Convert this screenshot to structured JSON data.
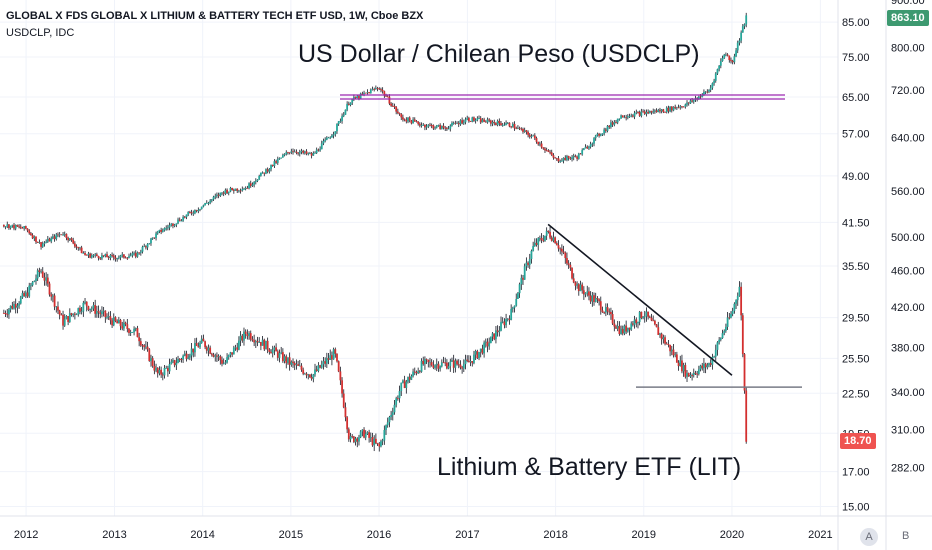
{
  "header": {
    "title": "GLOBAL X FDS GLOBAL X LITHIUM & BATTERY TECH ETF USD, 1W, Cboe BZX",
    "subtitle": "USDCLP, IDC"
  },
  "annotations": {
    "usdclp": "US Dollar / Chilean Peso (USDCLP)",
    "lit": "Lithium & Battery ETF (LIT)"
  },
  "price_tags": {
    "usdclp": "863.10",
    "lit": "18.70"
  },
  "buttons": {
    "auto": "A",
    "log": "B"
  },
  "colors": {
    "up": "#26a69a",
    "down": "#d32f2f",
    "usdclp_tag": "#3d9970",
    "lit_tag": "#ef5350",
    "resistance": "#9c27b0",
    "support": "#787b86",
    "trendline": "#131722"
  },
  "chart_data": [
    {
      "type": "line",
      "series": [
        {
          "name": "USDCLP",
          "x": [
            "2011-10",
            "2012-01",
            "2012-03",
            "2012-06",
            "2012-09",
            "2013-01",
            "2013-04",
            "2013-07",
            "2014-01",
            "2014-04",
            "2014-07",
            "2015-01",
            "2015-04",
            "2015-07",
            "2015-09",
            "2016-01",
            "2016-04",
            "2016-07",
            "2016-10",
            "2017-01",
            "2017-04",
            "2017-07",
            "2017-10",
            "2018-01",
            "2018-04",
            "2018-07",
            "2018-10",
            "2019-01",
            "2019-04",
            "2019-07",
            "2019-10",
            "2019-12",
            "2020-01",
            "2020-03"
          ],
          "values": [
            515,
            510,
            490,
            505,
            478,
            475,
            478,
            505,
            540,
            560,
            565,
            620,
            612,
            650,
            700,
            725,
            672,
            660,
            655,
            670,
            665,
            660,
            640,
            605,
            610,
            645,
            675,
            680,
            685,
            695,
            720,
            790,
            770,
            863
          ]
        }
      ],
      "ylim": [
        250,
        900
      ],
      "ticks": [
        282,
        310,
        340,
        380,
        420,
        460,
        500,
        560,
        640,
        720,
        800,
        900
      ]
    },
    {
      "type": "line",
      "series": [
        {
          "name": "LIT",
          "x": [
            "2011-10",
            "2012-01",
            "2012-03",
            "2012-06",
            "2012-09",
            "2013-01",
            "2013-04",
            "2013-07",
            "2014-01",
            "2014-04",
            "2014-07",
            "2015-01",
            "2015-04",
            "2015-07",
            "2015-09",
            "2015-11",
            "2016-01",
            "2016-04",
            "2016-07",
            "2016-10",
            "2017-01",
            "2017-04",
            "2017-07",
            "2017-10",
            "2017-12",
            "2018-01",
            "2018-04",
            "2018-07",
            "2018-10",
            "2019-01",
            "2019-04",
            "2019-07",
            "2019-10",
            "2020-01",
            "2020-02",
            "2020-03"
          ],
          "values": [
            30,
            32,
            35,
            29,
            31,
            29,
            28,
            24,
            27,
            25,
            28,
            25,
            24,
            26,
            19,
            19.5,
            18.5,
            23,
            25,
            25,
            25,
            27,
            30,
            38,
            40,
            39,
            33,
            31,
            28,
            30,
            27,
            24,
            25,
            30,
            33,
            18.7
          ]
        }
      ],
      "ylim": [
        14.5,
        92
      ],
      "ticks": [
        15,
        17,
        19.5,
        22.5,
        25.5,
        29.5,
        35.5,
        41.5,
        49,
        57,
        65,
        75,
        85
      ],
      "resistance": 65,
      "support": 23,
      "trendline": [
        [
          "2017-12",
          41.2
        ],
        [
          "2020-01",
          24
        ]
      ]
    }
  ],
  "x_axis": {
    "labels": [
      "2012",
      "2013",
      "2014",
      "2015",
      "2016",
      "2017",
      "2018",
      "2019",
      "2020",
      "2021"
    ],
    "range": [
      "2011-09-15",
      "2021-03-15"
    ]
  }
}
